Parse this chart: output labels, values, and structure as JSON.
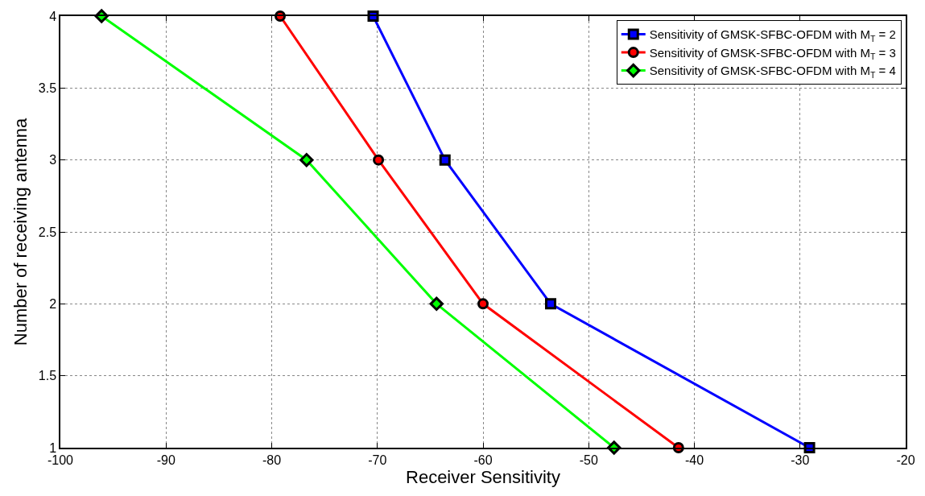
{
  "chart_data": {
    "type": "line",
    "xlabel": "Receiver Sensitivity",
    "ylabel": "Number of receiving antenna",
    "xlim": [
      -100,
      -20
    ],
    "xticks": [
      -100,
      -90,
      -80,
      -70,
      -60,
      -50,
      -40,
      -30,
      -20
    ],
    "ylim": [
      1,
      4
    ],
    "yticks": [
      1,
      1.5,
      2,
      2.5,
      3,
      3.5,
      4
    ],
    "grid": true,
    "legend": "top right",
    "series": [
      {
        "name": "Sensitivity of GMSK-SFBC-OFDM with M$_{T}$ = 2",
        "color": "#0000ff",
        "marker": "square",
        "x": [
          -70.4,
          -63.6,
          -53.6,
          -29.1
        ],
        "values": [
          4,
          3,
          2,
          1
        ]
      },
      {
        "name": "Sensitivity of GMSK-SFBC-OFDM with M$_{T}$ = 3",
        "color": "#ff0000",
        "marker": "circle",
        "x": [
          -79.2,
          -69.9,
          -60.0,
          -41.5
        ],
        "values": [
          4,
          3,
          2,
          1
        ]
      },
      {
        "name": "Sensitivity of GMSK-SFBC-OFDM with M$_{T}$ = 4",
        "color": "#00ff00",
        "marker": "diamond",
        "x": [
          -96.1,
          -76.7,
          -64.4,
          -47.6
        ],
        "values": [
          4,
          3,
          2,
          1
        ]
      }
    ]
  }
}
